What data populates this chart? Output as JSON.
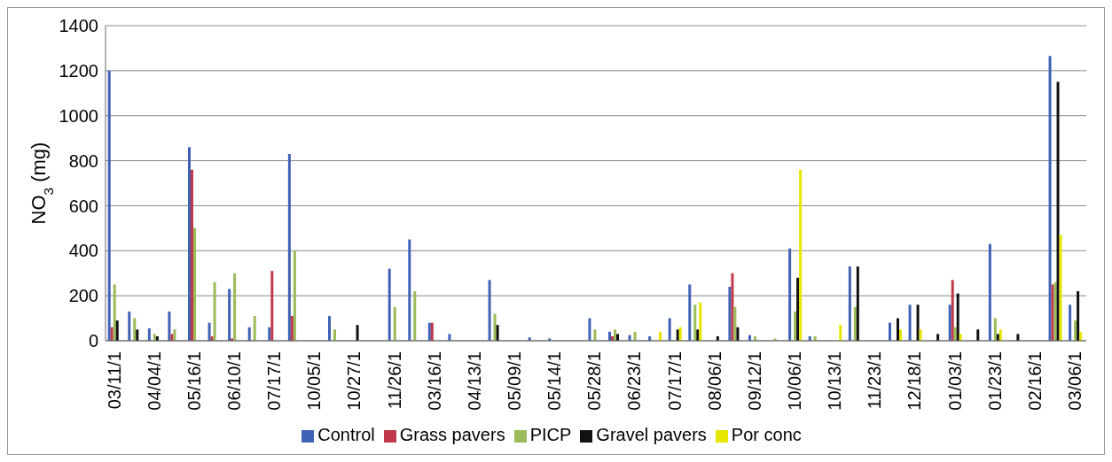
{
  "chart_data": {
    "type": "bar",
    "ylabel": "NO$_{3}$ (mg)",
    "categories": [
      "03/11/1",
      null,
      "04/04/1",
      null,
      "05/16/1",
      null,
      "06/10/1",
      null,
      "07/17/1",
      null,
      "10/05/1",
      null,
      "10/27/1",
      null,
      "11/26/1",
      null,
      "03/16/1",
      null,
      "04/13/1",
      null,
      "05/09/1",
      null,
      "05/14/1",
      null,
      "05/28/1",
      null,
      "06/23/1",
      null,
      "07/17/1",
      null,
      "08/06/1",
      null,
      "09/12/1",
      null,
      "10/06/1",
      null,
      "10/13/1",
      null,
      "11/23/1",
      null,
      "12/18/1",
      null,
      "01/03/1",
      null,
      "01/23/1",
      null,
      "02/16/1",
      null,
      "03/06/1"
    ],
    "series": [
      {
        "name": "Control",
        "color": "#3f62b5",
        "values": [
          1200,
          130,
          55,
          130,
          860,
          80,
          230,
          60,
          60,
          830,
          0,
          110,
          0,
          0,
          320,
          450,
          80,
          30,
          0,
          270,
          0,
          15,
          10,
          null,
          100,
          40,
          25,
          20,
          100,
          250,
          0,
          240,
          25,
          0,
          410,
          20,
          0,
          330,
          0,
          80,
          160,
          0,
          160,
          0,
          430,
          0,
          0,
          1265,
          160
        ]
      },
      {
        "name": "Grass pavers",
        "color": "#c0394a",
        "values": [
          60,
          0,
          0,
          30,
          760,
          20,
          10,
          0,
          310,
          110,
          0,
          0,
          0,
          0,
          0,
          0,
          80,
          0,
          0,
          0,
          0,
          0,
          0,
          0,
          0,
          20,
          0,
          0,
          0,
          0,
          0,
          300,
          0,
          0,
          0,
          0,
          0,
          0,
          0,
          0,
          0,
          0,
          270,
          0,
          0,
          0,
          0,
          250,
          0
        ]
      },
      {
        "name": "PICP",
        "color": "#9bbb59",
        "values": [
          250,
          100,
          30,
          50,
          500,
          260,
          300,
          110,
          0,
          400,
          0,
          50,
          0,
          0,
          150,
          220,
          0,
          0,
          0,
          120,
          0,
          0,
          0,
          0,
          50,
          50,
          40,
          0,
          0,
          160,
          0,
          150,
          20,
          10,
          130,
          20,
          0,
          150,
          0,
          0,
          0,
          0,
          60,
          0,
          100,
          0,
          0,
          260,
          90
        ]
      },
      {
        "name": "Gravel pavers",
        "color": "#111111",
        "values": [
          90,
          50,
          20,
          0,
          0,
          0,
          0,
          0,
          0,
          0,
          0,
          0,
          70,
          0,
          0,
          0,
          0,
          0,
          0,
          70,
          0,
          0,
          0,
          0,
          0,
          30,
          0,
          0,
          50,
          50,
          20,
          60,
          0,
          0,
          280,
          0,
          0,
          330,
          0,
          100,
          160,
          30,
          210,
          50,
          30,
          30,
          0,
          1150,
          220
        ]
      },
      {
        "name": "Por conc",
        "color": "#e6e600",
        "values": [
          0,
          0,
          0,
          0,
          0,
          0,
          0,
          0,
          0,
          0,
          0,
          0,
          0,
          0,
          0,
          0,
          0,
          0,
          0,
          0,
          0,
          0,
          0,
          0,
          0,
          0,
          0,
          40,
          60,
          170,
          0,
          0,
          0,
          0,
          760,
          0,
          70,
          0,
          0,
          50,
          50,
          0,
          30,
          0,
          50,
          0,
          0,
          470,
          40
        ]
      }
    ],
    "ylim": [
      0,
      1400
    ],
    "yticks": [
      0,
      200,
      400,
      600,
      800,
      1000,
      1200,
      1400
    ],
    "grid": "y",
    "legend": "bottom"
  }
}
